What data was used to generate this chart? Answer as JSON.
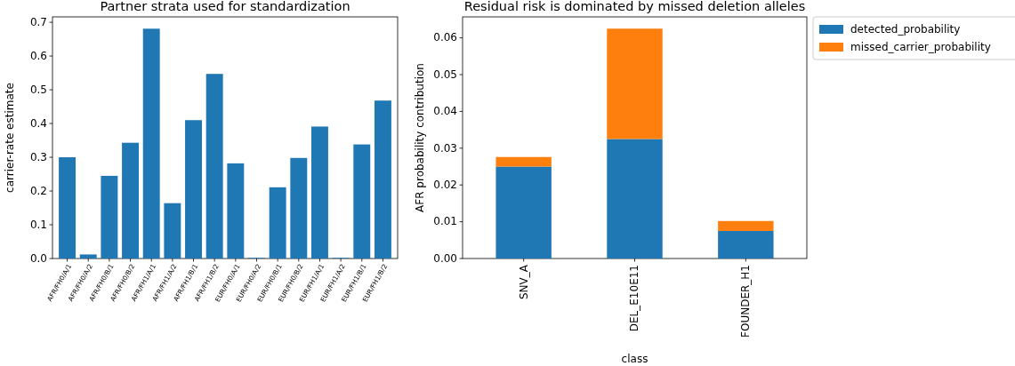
{
  "chart_data": [
    {
      "type": "bar",
      "title": "Partner strata used for standardization",
      "ylabel": "carrier-rate estimate",
      "categories": [
        "AFR/FH0/A/1",
        "AFR/FH0/A/2",
        "AFR/FH0/B/1",
        "AFR/FH0/B/2",
        "AFR/FH1/A/1",
        "AFR/FH1/A/2",
        "AFR/FH1/B/1",
        "AFR/FH1/B/2",
        "EUR/FH0/A/1",
        "EUR/FH0/A/2",
        "EUR/FH0/B/1",
        "EUR/FH0/B/2",
        "EUR/FH1/A/1",
        "EUR/FH1/A/2",
        "EUR/FH1/B/1",
        "EUR/FH1/B/2"
      ],
      "values": [
        0.3,
        0.012,
        0.245,
        0.343,
        0.681,
        0.164,
        0.41,
        0.547,
        0.282,
        0.002,
        0.211,
        0.298,
        0.391,
        0.002,
        0.338,
        0.468
      ],
      "color": "#1f77b4",
      "ylim": [
        0,
        0.716
      ],
      "yticks": [
        {
          "value": 0,
          "label": "0.0"
        },
        0.1,
        0.2,
        0.3,
        0.4,
        0.5,
        0.6,
        0.7
      ],
      "grid": false,
      "legend": false
    },
    {
      "type": "bar",
      "title": "Residual risk is dominated by missed deletion alleles",
      "xlabel": "class",
      "ylabel": "AFR probability contribution",
      "stacked": true,
      "categories": [
        "SNV_A",
        "DEL_E10E11",
        "FOUNDER_H1"
      ],
      "series": [
        {
          "name": "detected_probability",
          "color": "#1f77b4",
          "values": [
            0.025,
            0.0325,
            0.0075
          ]
        },
        {
          "name": "missed_carrier_probability",
          "color": "#ff7f0e",
          "values": [
            0.0026,
            0.03,
            0.0027
          ]
        }
      ],
      "ylim": [
        0,
        0.0657
      ],
      "yticks": [
        {
          "value": 0,
          "label": "0.00"
        },
        {
          "value": 0.01,
          "label": "0.01"
        },
        {
          "value": 0.02,
          "label": "0.02"
        },
        {
          "value": 0.03,
          "label": "0.03"
        },
        {
          "value": 0.04,
          "label": "0.04"
        },
        {
          "value": 0.05,
          "label": "0.05"
        },
        {
          "value": 0.06,
          "label": "0.06"
        }
      ],
      "grid": false,
      "legend": "outside top right"
    }
  ]
}
